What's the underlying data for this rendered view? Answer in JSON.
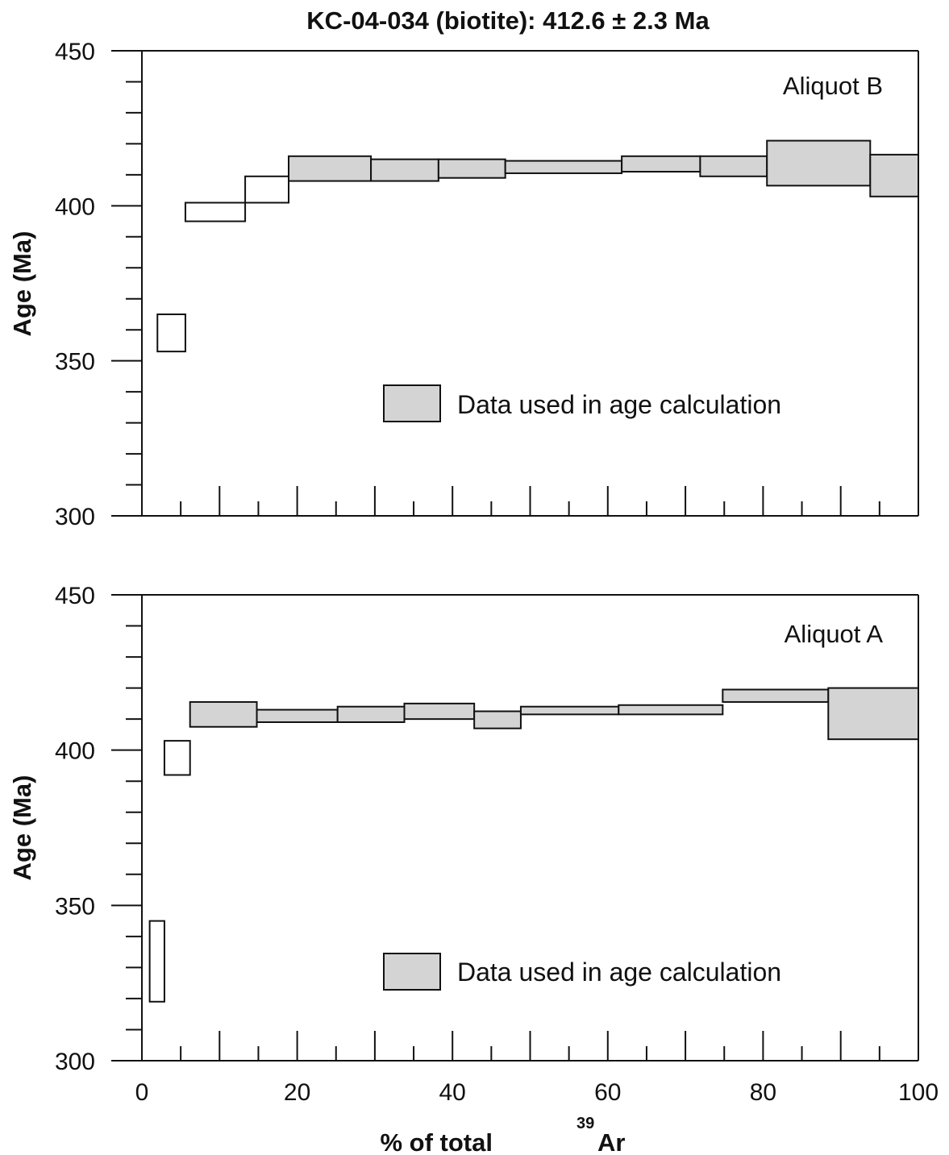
{
  "chart_data": {
    "type": "step",
    "title": "KC-04-034 (biotite): 412.6 ± 2.3 Ma",
    "xlabel": {
      "main": "% of total ",
      "superscript": "39",
      "species": "Ar"
    },
    "xlim": [
      0,
      100
    ],
    "xticks": [
      0,
      20,
      40,
      60,
      80,
      100
    ],
    "xtick_labels": [
      "0",
      "20",
      "40",
      "60",
      "80",
      "100"
    ],
    "panels": [
      {
        "label": "Aliquot B",
        "ylabel": "Age (Ma)",
        "ylim": [
          300,
          450
        ],
        "yticks": [
          300,
          350,
          400,
          450
        ],
        "ytick_labels": [
          "300",
          "350",
          "400",
          "450"
        ],
        "legend": "Data used in age calculation",
        "steps": [
          {
            "x0": 2,
            "x1": 5.6,
            "ylo": 353,
            "yhi": 365,
            "used": false
          },
          {
            "x0": 5.6,
            "x1": 13.3,
            "ylo": 395,
            "yhi": 401,
            "used": false
          },
          {
            "x0": 13.3,
            "x1": 18.9,
            "ylo": 401,
            "yhi": 409.5,
            "used": false
          },
          {
            "x0": 18.9,
            "x1": 29.5,
            "ylo": 408,
            "yhi": 416,
            "used": true
          },
          {
            "x0": 29.5,
            "x1": 38.2,
            "ylo": 408,
            "yhi": 415,
            "used": true
          },
          {
            "x0": 38.2,
            "x1": 46.8,
            "ylo": 409,
            "yhi": 415,
            "used": true
          },
          {
            "x0": 46.8,
            "x1": 61.8,
            "ylo": 410.5,
            "yhi": 414.5,
            "used": true
          },
          {
            "x0": 61.8,
            "x1": 71.9,
            "ylo": 411,
            "yhi": 416,
            "used": true
          },
          {
            "x0": 71.9,
            "x1": 80.5,
            "ylo": 409.5,
            "yhi": 416,
            "used": true
          },
          {
            "x0": 80.5,
            "x1": 93.8,
            "ylo": 406.5,
            "yhi": 421,
            "used": true
          },
          {
            "x0": 93.8,
            "x1": 100,
            "ylo": 403,
            "yhi": 416.5,
            "used": true
          }
        ]
      },
      {
        "label": "Aliquot A",
        "ylabel": "Age (Ma)",
        "ylim": [
          300,
          450
        ],
        "yticks": [
          300,
          350,
          400,
          450
        ],
        "ytick_labels": [
          "300",
          "350",
          "400",
          "450"
        ],
        "legend": "Data used in age calculation",
        "steps": [
          {
            "x0": 1,
            "x1": 2.9,
            "ylo": 319,
            "yhi": 345,
            "used": false
          },
          {
            "x0": 2.9,
            "x1": 6.2,
            "ylo": 392,
            "yhi": 403,
            "used": false
          },
          {
            "x0": 6.2,
            "x1": 14.8,
            "ylo": 407.5,
            "yhi": 415.5,
            "used": true
          },
          {
            "x0": 14.8,
            "x1": 25.2,
            "ylo": 409,
            "yhi": 413,
            "used": true
          },
          {
            "x0": 25.2,
            "x1": 33.8,
            "ylo": 409,
            "yhi": 414,
            "used": true
          },
          {
            "x0": 33.8,
            "x1": 42.8,
            "ylo": 410,
            "yhi": 415,
            "used": true
          },
          {
            "x0": 42.8,
            "x1": 48.8,
            "ylo": 407,
            "yhi": 412.5,
            "used": true
          },
          {
            "x0": 48.8,
            "x1": 61.4,
            "ylo": 411.5,
            "yhi": 414,
            "used": true
          },
          {
            "x0": 61.4,
            "x1": 74.8,
            "ylo": 411.5,
            "yhi": 414.5,
            "used": true
          },
          {
            "x0": 74.8,
            "x1": 88.4,
            "ylo": 415.5,
            "yhi": 419.5,
            "used": true
          },
          {
            "x0": 88.4,
            "x1": 100,
            "ylo": 403.5,
            "yhi": 420,
            "used": true
          }
        ]
      }
    ]
  },
  "colors": {
    "used_fill": "#d4d4d4",
    "unused_fill": "#ffffff",
    "stroke": "#111111"
  }
}
